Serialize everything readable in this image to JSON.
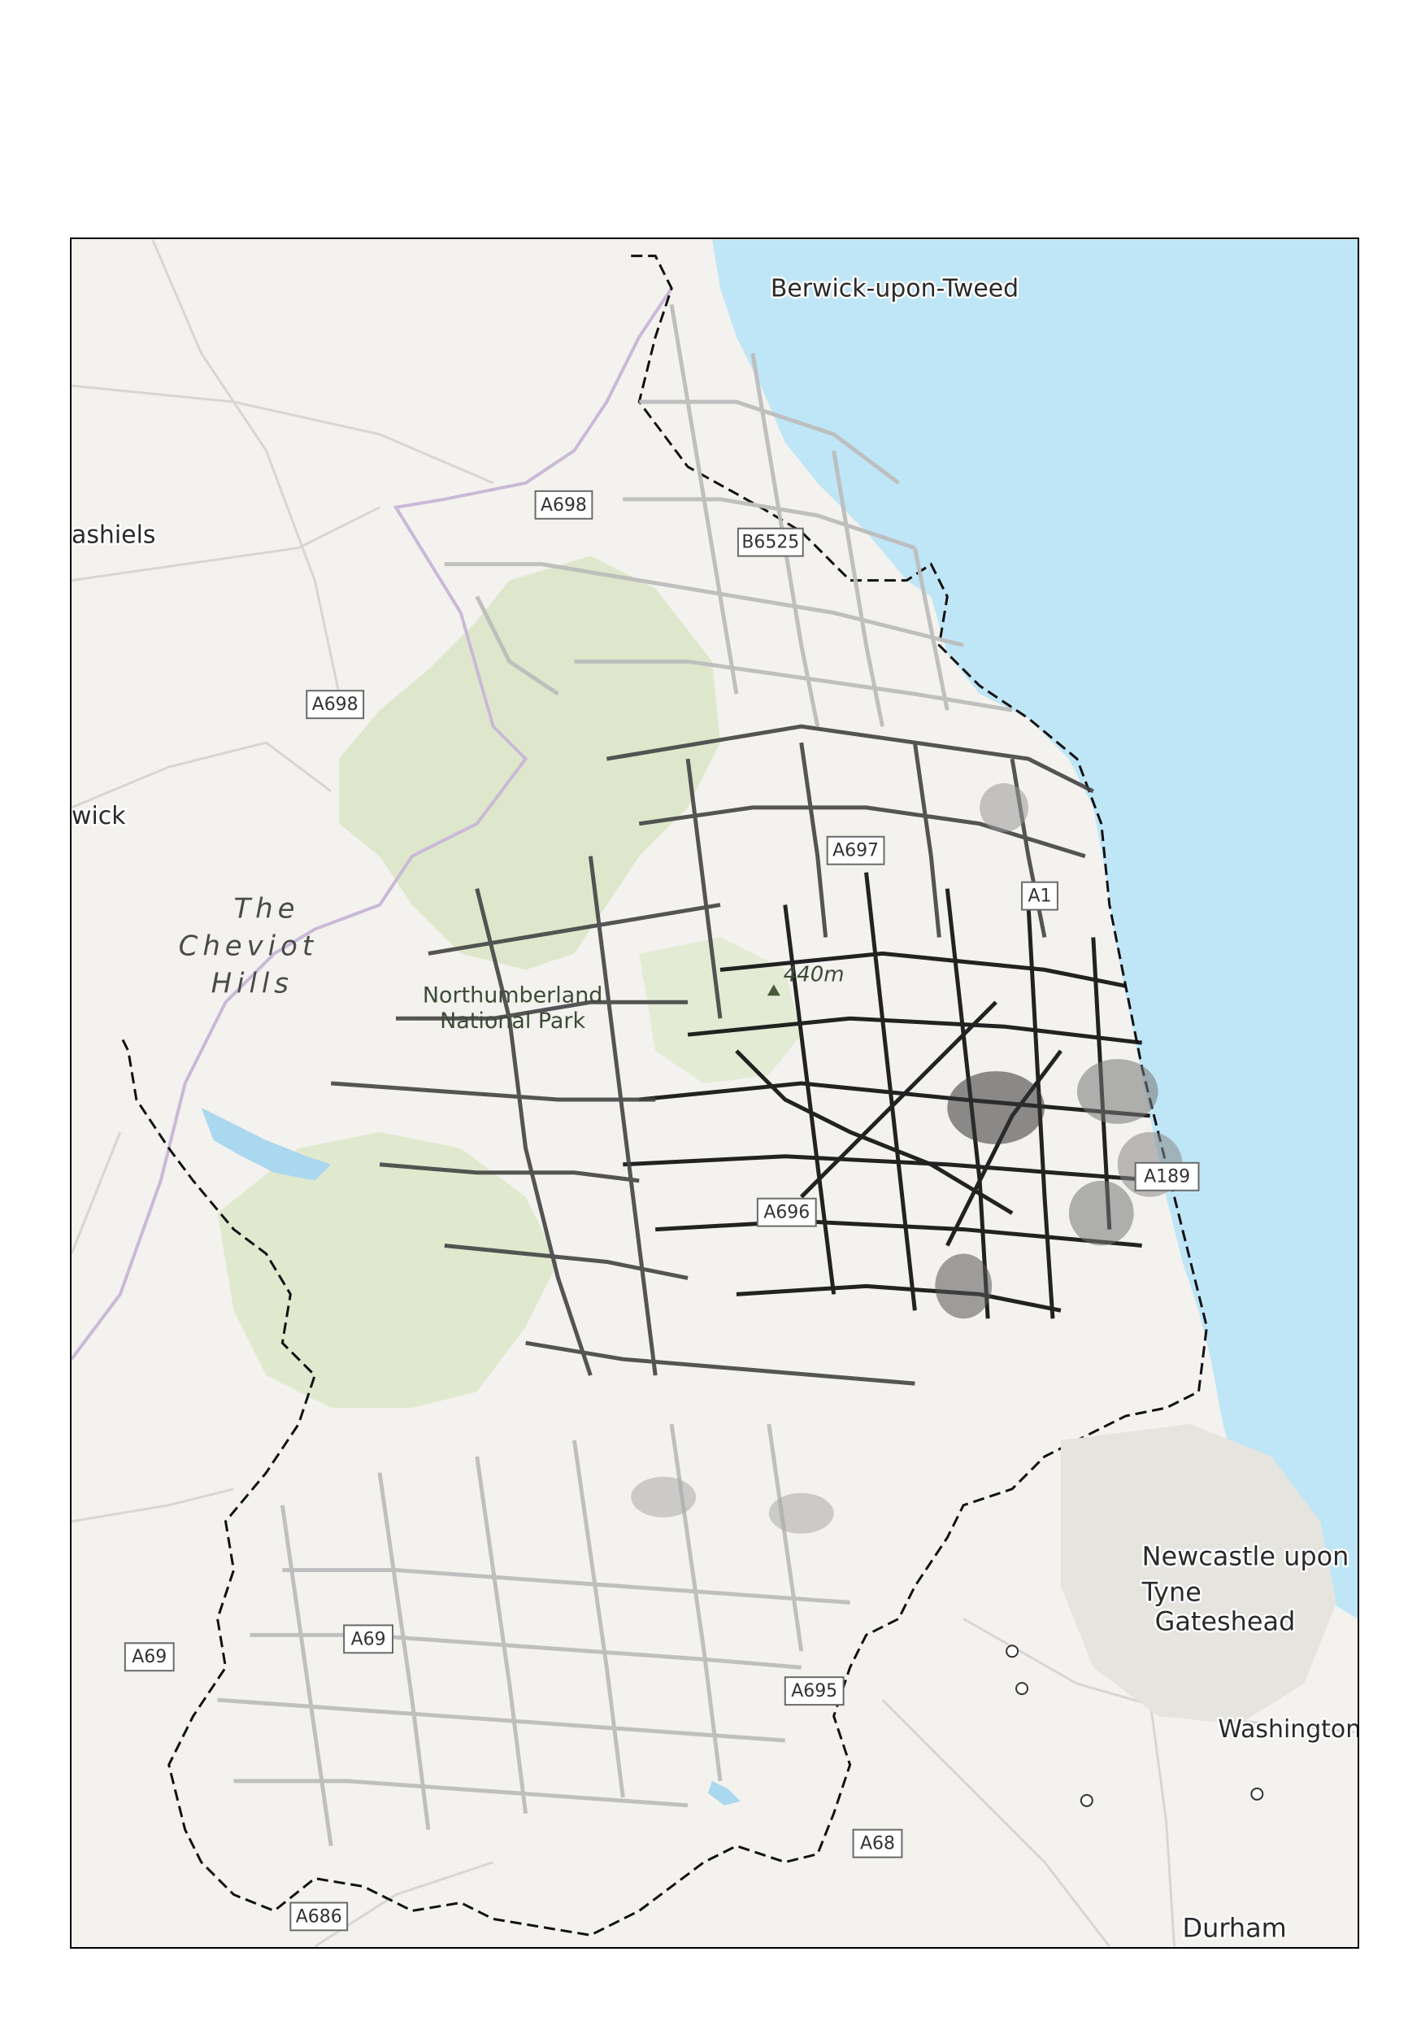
{
  "map": {
    "places": {
      "berwick": "Berwick-upon-Tweed",
      "galashiels": "ashiels",
      "hawick": "wick",
      "newcastle_1": "Newcastle upon",
      "newcastle_2": "Tyne",
      "gateshead": "Gateshead",
      "washington": "Washington",
      "durham": "Durham"
    },
    "hills": {
      "line1": "The",
      "line2": "Cheviot",
      "line3": "Hills"
    },
    "park": {
      "line1": "Northumberland",
      "line2": "National Park"
    },
    "summit": "440m",
    "roads": {
      "a698_top": "A698",
      "b6525": "B6525",
      "a698_left": "A698",
      "a697": "A697",
      "a1": "A1",
      "a189": "A189",
      "a696": "A696",
      "a69_left": "A69",
      "a69_south": "A69",
      "a695": "A695",
      "a68": "A68",
      "a686": "A686"
    },
    "colors": {
      "sea": "#bfe6f7",
      "land": "#f3f2ee",
      "park": "#dbe6c6",
      "border": "#c9b9d6",
      "boundary": "#111111",
      "network_dark": "#111111",
      "network_light": "#c8c8c8"
    },
    "icons": [
      "summit-triangle-icon",
      "town-circle-icon"
    ]
  }
}
